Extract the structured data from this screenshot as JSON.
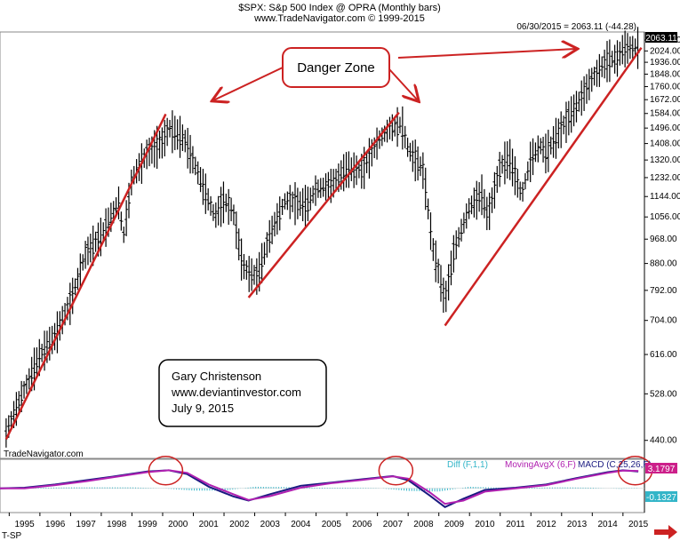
{
  "header": {
    "title": "$SPX:  S&p 500 Index @ OPRA  (Monthly bars)",
    "copyright": "www.TradeNavigator.com © 1999-2015",
    "last_quote": "06/30/2015 = 2063.11 (-44.28)",
    "last_price_tag": "2063.11"
  },
  "watermark": "TradeNavigator.com",
  "corner_label": "T-SP",
  "callout": {
    "text": "Danger Zone"
  },
  "note": {
    "lines": [
      "Gary Christenson",
      "www.deviantinvestor.com",
      "July 9, 2015"
    ]
  },
  "indicator_legend": {
    "diff": "Diff (F,1,1)",
    "mova": "MovingAvgX (6,F)",
    "macd": "MACD (C,25,26,F)",
    "macd_value": "3.1797",
    "diff_value": "-0.1327"
  },
  "colors": {
    "bars": "#000000",
    "trendline": "#cc2222",
    "callout_border": "#cc2222",
    "macd_line": "#1a1a80",
    "moving_avg_line": "#b020b0",
    "diff_hist": "#33b5c8",
    "price_tag_bg": "#000000",
    "macd_tag_bg": "#cc1f8a",
    "diff_tag_bg": "#33b5c8"
  },
  "chart_data": {
    "type": "ohlc",
    "title": "$SPX:  S&p 500 Index @ OPRA  (Monthly bars)",
    "y_scale": "log",
    "ylim": [
      410,
      2180
    ],
    "xlim": [
      1994.7,
      2015.7
    ],
    "y_ticks": [
      "2112.00",
      "2024.00",
      "1936.00",
      "1848.00",
      "1760.00",
      "1672.00",
      "1584.00",
      "1496.00",
      "1408.00",
      "1320.00",
      "1232.00",
      "1144.00",
      "1056.00",
      "968.00",
      "880.00",
      "792.00",
      "704.00",
      "616.00",
      "528.00",
      "440.00"
    ],
    "x_ticks": [
      "1995",
      "1996",
      "1997",
      "1998",
      "1999",
      "2000",
      "2001",
      "2002",
      "2003",
      "2004",
      "2005",
      "2006",
      "2007",
      "2008",
      "2009",
      "2010",
      "2011",
      "2012",
      "2013",
      "2014",
      "2015"
    ],
    "price_path": [
      [
        1994.9,
        455
      ],
      [
        1995.5,
        540
      ],
      [
        1996.0,
        615
      ],
      [
        1996.5,
        665
      ],
      [
        1997.0,
        760
      ],
      [
        1997.5,
        920
      ],
      [
        1998.0,
        985
      ],
      [
        1998.6,
        1130
      ],
      [
        1998.7,
        960
      ],
      [
        1999.0,
        1230
      ],
      [
        1999.5,
        1360
      ],
      [
        2000.0,
        1420
      ],
      [
        2000.2,
        1500
      ],
      [
        2000.7,
        1440
      ],
      [
        2001.0,
        1320
      ],
      [
        2001.7,
        1060
      ],
      [
        2002.0,
        1130
      ],
      [
        2002.3,
        1080
      ],
      [
        2002.6,
        880
      ],
      [
        2002.8,
        850
      ],
      [
        2003.1,
        840
      ],
      [
        2003.5,
        990
      ],
      [
        2004.0,
        1130
      ],
      [
        2004.7,
        1110
      ],
      [
        2005.0,
        1180
      ],
      [
        2005.5,
        1200
      ],
      [
        2006.0,
        1280
      ],
      [
        2006.5,
        1270
      ],
      [
        2007.0,
        1420
      ],
      [
        2007.4,
        1500
      ],
      [
        2007.8,
        1520
      ],
      [
        2008.0,
        1380
      ],
      [
        2008.5,
        1270
      ],
      [
        2008.8,
        940
      ],
      [
        2009.0,
        850
      ],
      [
        2009.2,
        760
      ],
      [
        2009.5,
        930
      ],
      [
        2010.0,
        1100
      ],
      [
        2010.4,
        1160
      ],
      [
        2010.6,
        1060
      ],
      [
        2011.0,
        1290
      ],
      [
        2011.3,
        1340
      ],
      [
        2011.7,
        1150
      ],
      [
        2012.0,
        1330
      ],
      [
        2012.3,
        1400
      ],
      [
        2012.5,
        1360
      ],
      [
        2013.0,
        1500
      ],
      [
        2013.5,
        1640
      ],
      [
        2014.0,
        1820
      ],
      [
        2014.5,
        1960
      ],
      [
        2014.8,
        1970
      ],
      [
        2015.0,
        2050
      ],
      [
        2015.5,
        2063.11
      ]
    ],
    "trendlines": [
      {
        "x": [
          1994.9,
          2000.1
        ],
        "y": [
          442,
          1580
        ]
      },
      {
        "x": [
          2002.8,
          2007.7
        ],
        "y": [
          770,
          1590
        ]
      },
      {
        "x": [
          2009.2,
          2015.6
        ],
        "y": [
          690,
          2050
        ]
      }
    ],
    "indicator": {
      "series": [
        {
          "name": "MACD (C,25,26,F)",
          "points": [
            [
              1994.7,
              0.0
            ],
            [
              1995.5,
              0.02
            ],
            [
              1996.5,
              0.12
            ],
            [
              1997.5,
              0.25
            ],
            [
              1998.5,
              0.38
            ],
            [
              1999.5,
              0.52
            ],
            [
              2000.2,
              0.56
            ],
            [
              2000.8,
              0.44
            ],
            [
              2001.5,
              0.05
            ],
            [
              2002.3,
              -0.25
            ],
            [
              2002.8,
              -0.38
            ],
            [
              2003.5,
              -0.18
            ],
            [
              2004.5,
              0.08
            ],
            [
              2005.5,
              0.18
            ],
            [
              2006.5,
              0.28
            ],
            [
              2007.5,
              0.38
            ],
            [
              2008.0,
              0.25
            ],
            [
              2008.7,
              -0.22
            ],
            [
              2009.2,
              -0.58
            ],
            [
              2009.8,
              -0.32
            ],
            [
              2010.5,
              -0.05
            ],
            [
              2011.5,
              0.02
            ],
            [
              2012.5,
              0.12
            ],
            [
              2013.5,
              0.32
            ],
            [
              2014.5,
              0.5
            ],
            [
              2015.0,
              0.56
            ],
            [
              2015.5,
              0.52
            ]
          ]
        },
        {
          "name": "MovingAvgX (6,F)",
          "points": [
            [
              1994.7,
              0.0
            ],
            [
              1995.5,
              0.0
            ],
            [
              1996.5,
              0.1
            ],
            [
              1997.5,
              0.22
            ],
            [
              1998.5,
              0.36
            ],
            [
              1999.5,
              0.5
            ],
            [
              2000.2,
              0.56
            ],
            [
              2000.8,
              0.48
            ],
            [
              2001.5,
              0.12
            ],
            [
              2002.3,
              -0.18
            ],
            [
              2002.8,
              -0.36
            ],
            [
              2003.5,
              -0.24
            ],
            [
              2004.5,
              0.02
            ],
            [
              2005.5,
              0.16
            ],
            [
              2006.5,
              0.26
            ],
            [
              2007.5,
              0.37
            ],
            [
              2008.0,
              0.3
            ],
            [
              2008.7,
              -0.12
            ],
            [
              2009.2,
              -0.48
            ],
            [
              2009.8,
              -0.38
            ],
            [
              2010.5,
              -0.1
            ],
            [
              2011.5,
              0.0
            ],
            [
              2012.5,
              0.1
            ],
            [
              2013.5,
              0.3
            ],
            [
              2014.5,
              0.48
            ],
            [
              2015.0,
              0.55
            ],
            [
              2015.5,
              0.54
            ]
          ]
        }
      ],
      "diff_hist": [
        [
          1995,
          0.01
        ],
        [
          1996,
          0.02
        ],
        [
          1997,
          0.03
        ],
        [
          1998,
          0.03
        ],
        [
          1999,
          0.03
        ],
        [
          2000,
          0.0
        ],
        [
          2001,
          -0.07
        ],
        [
          2002,
          -0.07
        ],
        [
          2003,
          0.05
        ],
        [
          2004,
          0.04
        ],
        [
          2005,
          0.02
        ],
        [
          2006,
          0.02
        ],
        [
          2007,
          0.01
        ],
        [
          2008,
          -0.08
        ],
        [
          2009,
          -0.1
        ],
        [
          2010,
          0.05
        ],
        [
          2011,
          0.02
        ],
        [
          2012,
          0.02
        ],
        [
          2013,
          0.03
        ],
        [
          2014,
          0.02
        ],
        [
          2015,
          -0.02
        ]
      ],
      "ylim": [
        -0.75,
        0.9
      ]
    },
    "highlight_circles_x": [
      2000.1,
      2007.6,
      2015.4
    ]
  }
}
